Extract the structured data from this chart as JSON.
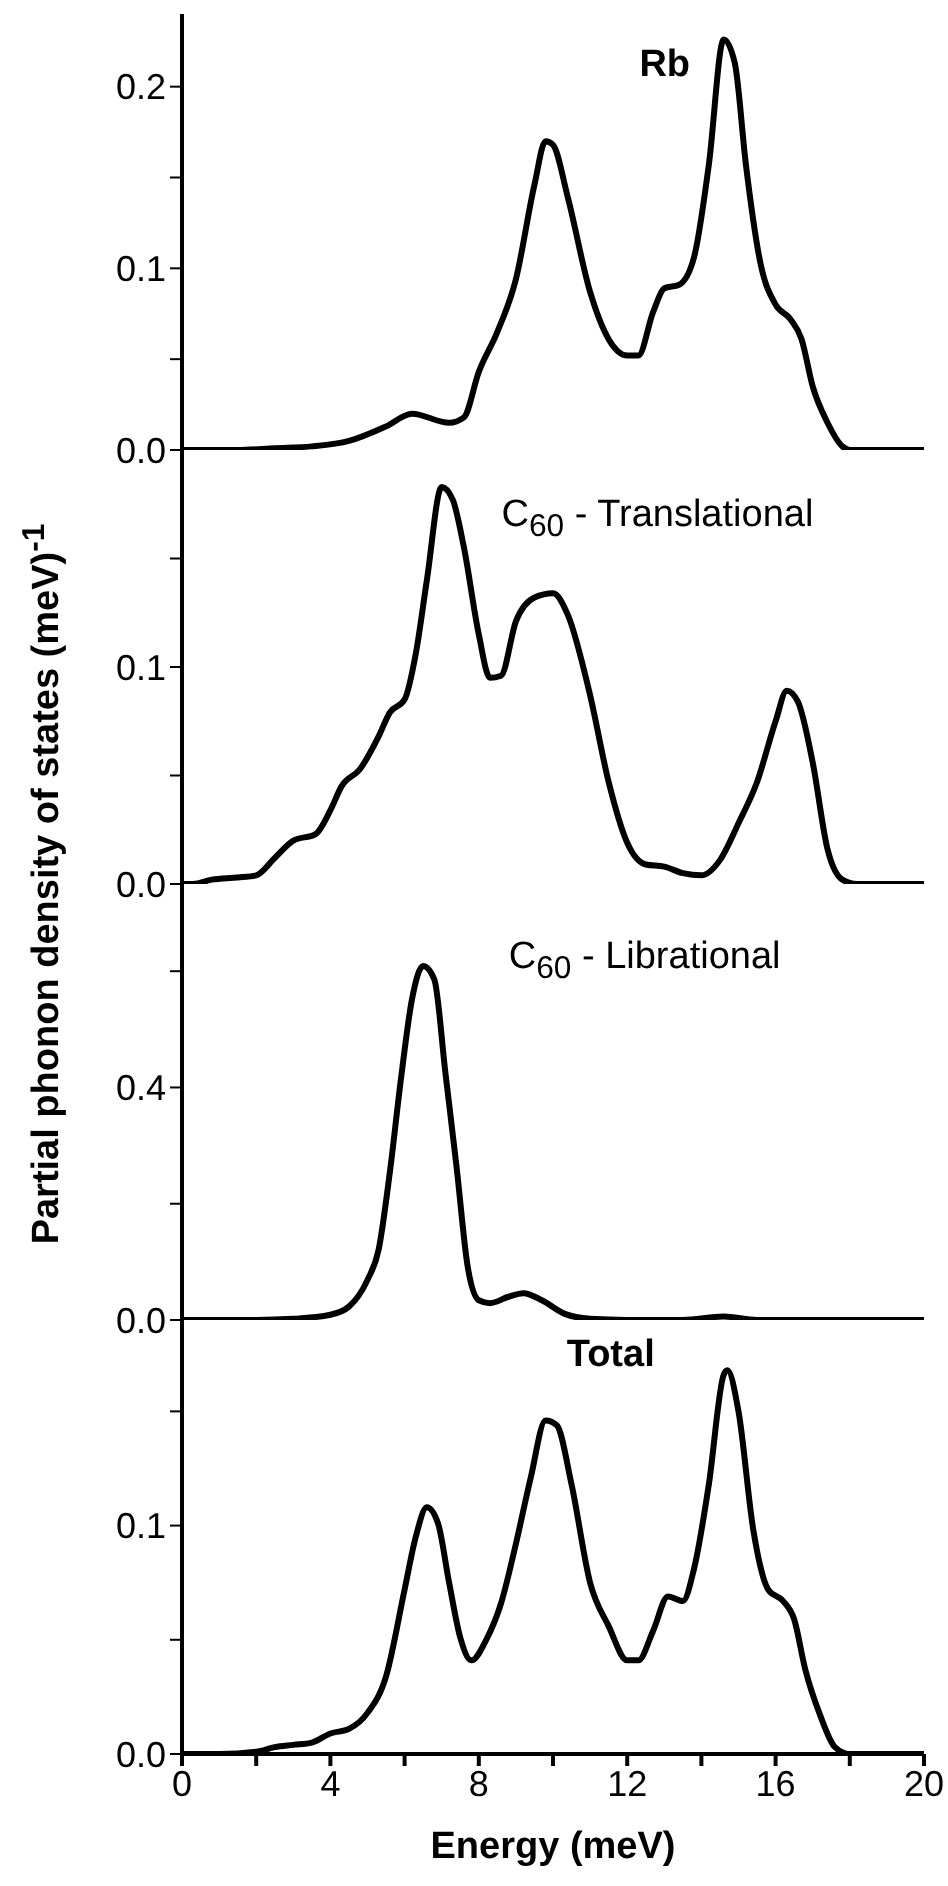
{
  "chart_data": [
    {
      "type": "line",
      "ylabel": "Partial phonon density of states (meV)$^{-1}$",
      "annotations": [
        "Rb"
      ],
      "tick_labels": "y",
      "xlim": [
        0,
        20
      ],
      "ylim": [
        0,
        0.24
      ],
      "yticks": [
        {
          "value": 0,
          "label": "0.0"
        },
        {
          "value": 0.05,
          "label": null
        },
        {
          "value": 0.1,
          "label": "0.1"
        },
        {
          "value": 0.15,
          "label": null
        },
        {
          "value": 0.2,
          "label": "0.2"
        }
      ],
      "x": [
        0,
        1.5,
        2.5,
        3.5,
        4.5,
        5.5,
        6.2,
        7.2,
        7.6,
        8.0,
        8.5,
        9.0,
        9.5,
        9.8,
        10.0,
        10.4,
        11.0,
        11.5,
        12.0,
        12.3,
        12.7,
        13.0,
        13.4,
        13.8,
        14.2,
        14.6,
        14.9,
        15.2,
        15.6,
        16.0,
        16.4,
        16.7,
        17.0,
        17.4,
        17.8,
        18.0,
        20
      ],
      "series": [
        {
          "color": "#000000",
          "values": [
            0,
            0,
            0.001,
            0.002,
            0.005,
            0.013,
            0.02,
            0.015,
            0.018,
            0.043,
            0.065,
            0.094,
            0.146,
            0.17,
            0.168,
            0.139,
            0.087,
            0.061,
            0.052,
            0.052,
            0.076,
            0.089,
            0.091,
            0.106,
            0.157,
            0.226,
            0.213,
            0.157,
            0.102,
            0.08,
            0.072,
            0.061,
            0.035,
            0.015,
            0.002,
            0,
            0
          ]
        }
      ]
    },
    {
      "type": "line",
      "annotations": [
        "C$_{60}$ - Translational"
      ],
      "tick_labels": "y",
      "xlim": [
        0,
        20
      ],
      "ylim": [
        0,
        0.2
      ],
      "yticks": [
        {
          "value": 0,
          "label": "0.0"
        },
        {
          "value": 0.05,
          "label": null
        },
        {
          "value": 0.1,
          "label": "0.1"
        },
        {
          "value": 0.15,
          "label": null
        }
      ],
      "x": [
        0,
        0.3,
        0.8,
        1.5,
        2.0,
        2.5,
        3.0,
        3.6,
        4.0,
        4.3,
        4.8,
        5.3,
        5.6,
        6.0,
        6.3,
        6.6,
        7.0,
        7.3,
        7.6,
        8.0,
        8.3,
        8.6,
        9.0,
        9.5,
        10.0,
        10.4,
        11.0,
        11.5,
        12.0,
        12.5,
        13.0,
        13.5,
        14.0,
        14.5,
        15.0,
        15.5,
        16.0,
        16.3,
        16.6,
        17.0,
        17.4,
        17.8,
        18.2,
        20
      ],
      "series": [
        {
          "color": "#000000",
          "values": [
            0,
            0,
            0.002,
            0.003,
            0.004,
            0.012,
            0.02,
            0.023,
            0.034,
            0.045,
            0.053,
            0.068,
            0.079,
            0.085,
            0.106,
            0.14,
            0.183,
            0.177,
            0.155,
            0.115,
            0.095,
            0.096,
            0.121,
            0.132,
            0.134,
            0.124,
            0.087,
            0.047,
            0.019,
            0.009,
            0.008,
            0.005,
            0.004,
            0.011,
            0.028,
            0.047,
            0.075,
            0.089,
            0.084,
            0.056,
            0.016,
            0.002,
            0,
            0
          ]
        }
      ]
    },
    {
      "type": "line",
      "annotations": [
        "C$_{60}$ - Librational"
      ],
      "tick_labels": "y",
      "xlim": [
        0,
        20
      ],
      "ylim": [
        0,
        0.75
      ],
      "yticks": [
        {
          "value": 0,
          "label": "0.0"
        },
        {
          "value": 0.2,
          "label": null
        },
        {
          "value": 0.4,
          "label": "0.4"
        },
        {
          "value": 0.6,
          "label": null
        }
      ],
      "x": [
        0,
        2.0,
        3.0,
        4.0,
        4.5,
        5.0,
        5.3,
        5.6,
        5.9,
        6.2,
        6.5,
        6.8,
        7.1,
        7.4,
        7.7,
        8.0,
        8.3,
        8.8,
        9.2,
        9.7,
        10.3,
        11.0,
        12.0,
        13.5,
        14.6,
        15.5,
        20
      ],
      "series": [
        {
          "color": "#000000",
          "values": [
            0,
            0,
            0.002,
            0.009,
            0.023,
            0.069,
            0.121,
            0.253,
            0.414,
            0.552,
            0.609,
            0.586,
            0.425,
            0.264,
            0.092,
            0.034,
            0.029,
            0.04,
            0.046,
            0.034,
            0.011,
            0.002,
            0,
            0,
            0.006,
            0,
            0
          ]
        }
      ]
    },
    {
      "type": "line",
      "xlabel": "Energy (meV)",
      "annotations": [
        "Total"
      ],
      "xlim": [
        0,
        20
      ],
      "ylim": [
        0,
        0.19
      ],
      "xticks": [
        0,
        {
          "value": 2,
          "label": null
        },
        4,
        {
          "value": 6,
          "label": null
        },
        8,
        {
          "value": 10,
          "label": null
        },
        12,
        {
          "value": 14,
          "label": null
        },
        16,
        {
          "value": 18,
          "label": null
        },
        20
      ],
      "yticks": [
        {
          "value": 0,
          "label": "0.0"
        },
        {
          "value": 0.05,
          "label": null
        },
        {
          "value": 0.1,
          "label": "0.1"
        },
        {
          "value": 0.15,
          "label": null
        }
      ],
      "x": [
        0,
        1.0,
        2.0,
        2.5,
        3.0,
        3.5,
        4.0,
        4.5,
        5.0,
        5.5,
        6.0,
        6.3,
        6.6,
        6.9,
        7.2,
        7.5,
        7.8,
        8.2,
        8.6,
        9.0,
        9.4,
        9.8,
        10.1,
        10.5,
        11.0,
        11.5,
        12.0,
        12.3,
        12.7,
        13.1,
        13.5,
        13.8,
        14.2,
        14.6,
        14.7,
        15.0,
        15.4,
        15.8,
        16.2,
        16.5,
        16.8,
        17.2,
        17.6,
        18.0,
        20
      ],
      "series": [
        {
          "color": "#000000",
          "values": [
            0,
            0,
            0.001,
            0.003,
            0.004,
            0.005,
            0.009,
            0.011,
            0.018,
            0.034,
            0.072,
            0.095,
            0.108,
            0.101,
            0.075,
            0.051,
            0.041,
            0.05,
            0.066,
            0.092,
            0.121,
            0.146,
            0.144,
            0.118,
            0.075,
            0.056,
            0.041,
            0.041,
            0.054,
            0.069,
            0.067,
            0.081,
            0.118,
            0.166,
            0.168,
            0.15,
            0.098,
            0.072,
            0.067,
            0.059,
            0.037,
            0.017,
            0.003,
            0,
            0
          ]
        }
      ]
    }
  ]
}
